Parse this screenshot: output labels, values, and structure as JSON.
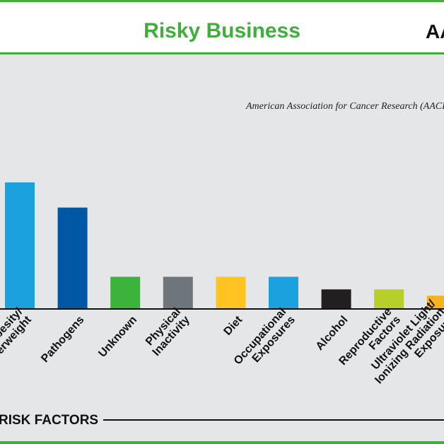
{
  "chart_data": {
    "type": "bar",
    "title": "Risky Business",
    "logo": "AACR",
    "subtitle": "American Association for Cancer Research (AACR)",
    "x_label": "RISK FACTORS",
    "categories": [
      [
        "Obesity/",
        "Overweight"
      ],
      [
        "Pathogens"
      ],
      [
        "Unknown"
      ],
      [
        "Physical",
        "Inactivity"
      ],
      [
        "Diet"
      ],
      [
        "Occupational",
        "Exposures"
      ],
      [
        "Alcohol"
      ],
      [
        "Reproductive",
        "Factors"
      ],
      [
        "Ultraviolet Light/",
        "Ionizing Radiation",
        "Exposure"
      ]
    ],
    "values": [
      20,
      16,
      5,
      5,
      5,
      5,
      3,
      3,
      2
    ],
    "colors": [
      "#1ba1dd",
      "#0057a4",
      "#3cb43c",
      "#6f767b",
      "#ffc421",
      "#1ba1dd",
      "#231f20",
      "#b8cf2a",
      "#f6b31b"
    ]
  }
}
